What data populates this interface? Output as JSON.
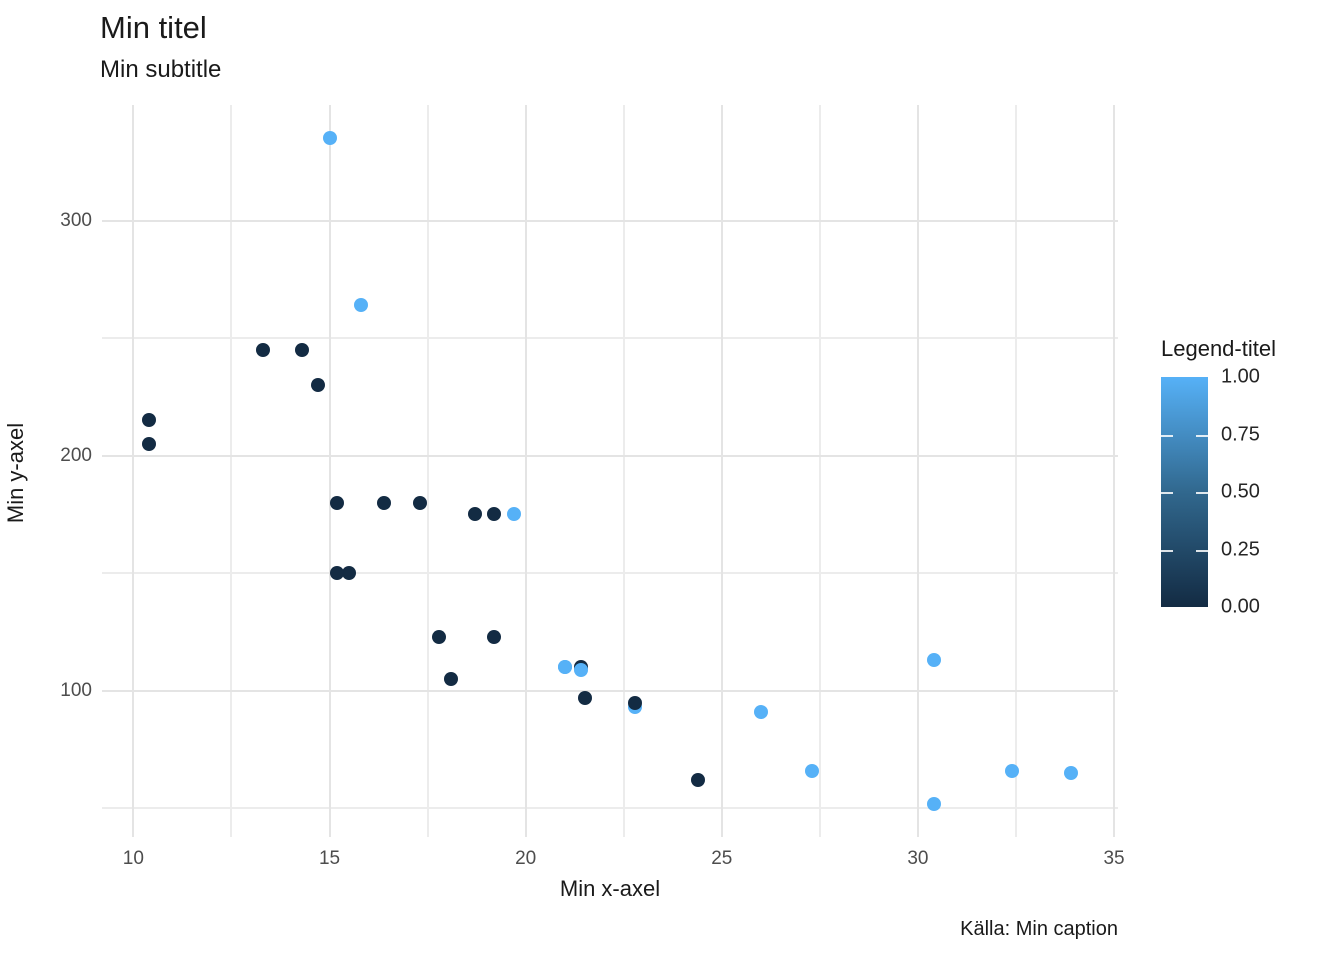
{
  "header": {
    "title": "Min titel",
    "subtitle": "Min subtitle"
  },
  "caption": "Källa: Min caption",
  "chart_data": {
    "type": "scatter",
    "title": "Min titel",
    "subtitle": "Min subtitle",
    "caption": "Källa: Min caption",
    "xlabel": "Min x-axel",
    "ylabel": "Min y-axel",
    "grid": true,
    "background": "#ffffff",
    "grid_major_color": "#e4e4e4",
    "grid_minor_color": "#ececec",
    "axis_text_color": "#4d4d4d",
    "xlim": [
      9.2,
      35.1
    ],
    "ylim": [
      37.8,
      349.2
    ],
    "x_major_ticks": [
      10,
      15,
      20,
      25,
      30,
      35
    ],
    "x_minor_ticks": [
      12.5,
      17.5,
      22.5,
      27.5,
      32.5
    ],
    "y_major_ticks": [
      100,
      200,
      300
    ],
    "y_minor_ticks": [
      50,
      150,
      250
    ],
    "legend": {
      "title": "Legend-titel",
      "position": "right",
      "style": "colorbar",
      "low_color": "#132b43",
      "mid_color": "#31688e",
      "high_color": "#56b1f7",
      "tick_values": [
        1.0,
        0.75,
        0.5,
        0.25,
        0.0
      ],
      "tick_labels": [
        "1.00",
        "0.75",
        "0.50",
        "0.25",
        "0.00"
      ]
    },
    "points": [
      {
        "x": 21.0,
        "y": 110,
        "c": 1
      },
      {
        "x": 21.0,
        "y": 110,
        "c": 1
      },
      {
        "x": 22.8,
        "y": 93,
        "c": 1
      },
      {
        "x": 21.4,
        "y": 110,
        "c": 0
      },
      {
        "x": 18.7,
        "y": 175,
        "c": 0
      },
      {
        "x": 18.1,
        "y": 105,
        "c": 0
      },
      {
        "x": 14.3,
        "y": 245,
        "c": 0
      },
      {
        "x": 24.4,
        "y": 62,
        "c": 0
      },
      {
        "x": 22.8,
        "y": 95,
        "c": 0
      },
      {
        "x": 19.2,
        "y": 123,
        "c": 0
      },
      {
        "x": 17.8,
        "y": 123,
        "c": 0
      },
      {
        "x": 16.4,
        "y": 180,
        "c": 0
      },
      {
        "x": 17.3,
        "y": 180,
        "c": 0
      },
      {
        "x": 15.2,
        "y": 180,
        "c": 0
      },
      {
        "x": 10.4,
        "y": 205,
        "c": 0
      },
      {
        "x": 10.4,
        "y": 215,
        "c": 0
      },
      {
        "x": 14.7,
        "y": 230,
        "c": 0
      },
      {
        "x": 32.4,
        "y": 66,
        "c": 1
      },
      {
        "x": 30.4,
        "y": 52,
        "c": 1
      },
      {
        "x": 33.9,
        "y": 65,
        "c": 1
      },
      {
        "x": 21.5,
        "y": 97,
        "c": 0
      },
      {
        "x": 15.5,
        "y": 150,
        "c": 0
      },
      {
        "x": 15.2,
        "y": 150,
        "c": 0
      },
      {
        "x": 13.3,
        "y": 245,
        "c": 0
      },
      {
        "x": 19.2,
        "y": 175,
        "c": 0
      },
      {
        "x": 27.3,
        "y": 66,
        "c": 1
      },
      {
        "x": 26.0,
        "y": 91,
        "c": 1
      },
      {
        "x": 30.4,
        "y": 113,
        "c": 1
      },
      {
        "x": 15.8,
        "y": 264,
        "c": 1
      },
      {
        "x": 19.7,
        "y": 175,
        "c": 1
      },
      {
        "x": 15.0,
        "y": 335,
        "c": 1
      },
      {
        "x": 21.4,
        "y": 109,
        "c": 1
      }
    ]
  }
}
